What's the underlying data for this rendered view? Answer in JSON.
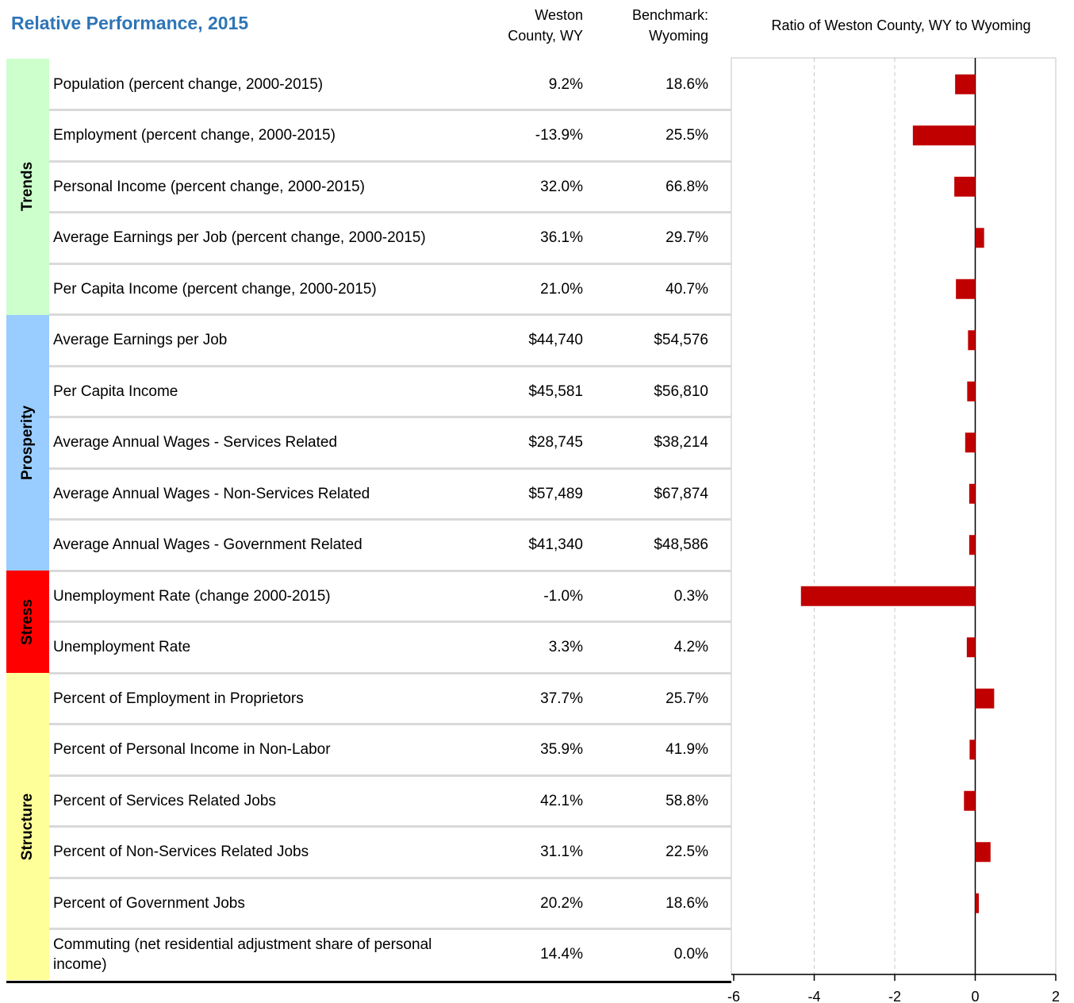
{
  "title": "Relative Performance, 2015",
  "columns": [
    "Weston County, WY",
    "Benchmark: Wyoming"
  ],
  "groups": [
    {
      "name": "Trends",
      "color": "#ccffcc",
      "rows": [
        {
          "label": "Population (percent change, 2000-2015)",
          "county": "9.2%",
          "benchmark": "18.6%"
        },
        {
          "label": "Employment (percent change, 2000-2015)",
          "county": "-13.9%",
          "benchmark": "25.5%"
        },
        {
          "label": "Personal Income (percent change, 2000-2015)",
          "county": "32.0%",
          "benchmark": "66.8%"
        },
        {
          "label": "Average Earnings per Job (percent change, 2000-2015)",
          "county": "36.1%",
          "benchmark": "29.7%"
        },
        {
          "label": "Per Capita Income (percent change, 2000-2015)",
          "county": "21.0%",
          "benchmark": "40.7%"
        }
      ]
    },
    {
      "name": "Prosperity",
      "color": "#99ccff",
      "rows": [
        {
          "label": "Average Earnings per Job",
          "county": "$44,740",
          "benchmark": "$54,576"
        },
        {
          "label": "Per Capita Income",
          "county": "$45,581",
          "benchmark": "$56,810"
        },
        {
          "label": "Average Annual Wages - Services Related",
          "county": "$28,745",
          "benchmark": "$38,214"
        },
        {
          "label": "Average Annual Wages - Non-Services Related",
          "county": "$57,489",
          "benchmark": "$67,874"
        },
        {
          "label": "Average Annual Wages - Government Related",
          "county": "$41,340",
          "benchmark": "$48,586"
        }
      ]
    },
    {
      "name": "Stress",
      "color": "#ff0000",
      "rows": [
        {
          "label": "Unemployment Rate (change 2000-2015)",
          "county": "-1.0%",
          "benchmark": "0.3%"
        },
        {
          "label": "Unemployment Rate",
          "county": "3.3%",
          "benchmark": "4.2%"
        }
      ]
    },
    {
      "name": "Structure",
      "color": "#ffff99",
      "rows": [
        {
          "label": "Percent of Employment in Proprietors",
          "county": "37.7%",
          "benchmark": "25.7%"
        },
        {
          "label": "Percent of Personal Income in Non-Labor",
          "county": "35.9%",
          "benchmark": "41.9%"
        },
        {
          "label": "Percent of Services Related Jobs",
          "county": "42.1%",
          "benchmark": "58.8%"
        },
        {
          "label": "Percent of Non-Services Related Jobs",
          "county": "31.1%",
          "benchmark": "22.5%"
        },
        {
          "label": "Percent of Government Jobs",
          "county": "20.2%",
          "benchmark": "18.6%"
        },
        {
          "label": "Commuting (net residential adjustment share of personal income)",
          "county": "14.4%",
          "benchmark": "0.0%"
        }
      ]
    }
  ],
  "chart_data": {
    "type": "bar",
    "orientation": "horizontal",
    "title": "Ratio of Weston County, WY to Wyoming",
    "values": [
      -0.5,
      -1.55,
      -0.52,
      0.22,
      -0.48,
      -0.18,
      -0.2,
      -0.25,
      -0.15,
      -0.15,
      -4.33,
      -0.21,
      0.47,
      -0.14,
      -0.28,
      0.38,
      0.09,
      null
    ],
    "color": "#c00000",
    "xlim": [
      -6,
      2
    ],
    "xticks": [
      -6,
      -4,
      -2,
      0,
      2
    ],
    "grid": true
  }
}
